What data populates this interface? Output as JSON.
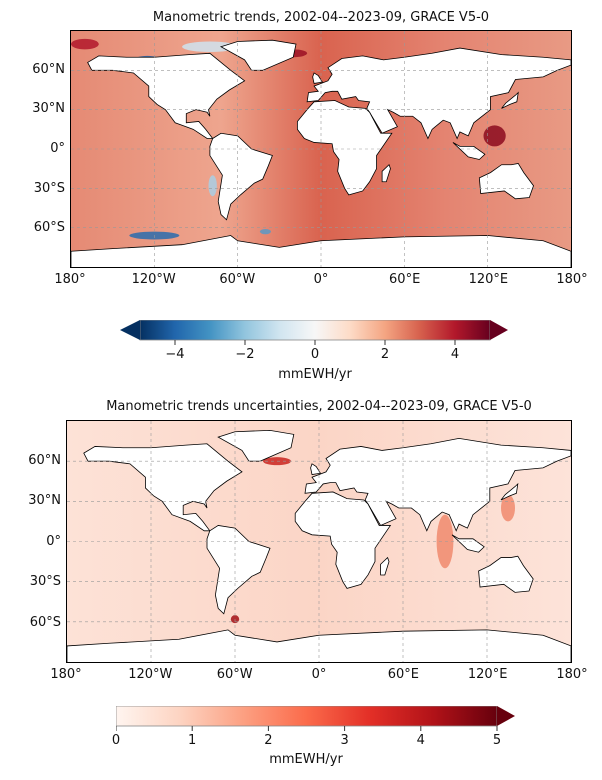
{
  "chart_data": [
    {
      "type": "heatmap",
      "title": "Manometric trends, 2002-04--2023-09, GRACE V5-0",
      "x_ticks": [
        "180°",
        "120°W",
        "60°W",
        "0°",
        "60°E",
        "120°E",
        "180°"
      ],
      "y_ticks": [
        "60°N",
        "30°N",
        "0°",
        "30°S",
        "60°S"
      ],
      "colorbar": {
        "label": "mmEWH/yr",
        "range": [
          -5,
          5
        ],
        "ticks": [
          "−4",
          "−2",
          "0",
          "2",
          "4"
        ],
        "tick_values": [
          -4,
          -2,
          0,
          2,
          4
        ],
        "colormap": "RdBu_r",
        "extend": "both"
      }
    },
    {
      "type": "heatmap",
      "title": "Manometric trends uncertainties, 2002-04--2023-09, GRACE V5-0",
      "x_ticks": [
        "180°",
        "120°W",
        "60°W",
        "0°",
        "60°E",
        "120°E",
        "180°"
      ],
      "y_ticks": [
        "60°N",
        "30°N",
        "0°",
        "30°S",
        "60°S"
      ],
      "colorbar": {
        "label": "mmEWH/yr",
        "range": [
          0,
          5
        ],
        "ticks": [
          "0",
          "1",
          "2",
          "3",
          "4",
          "5"
        ],
        "tick_values": [
          0,
          1,
          2,
          3,
          4,
          5
        ],
        "colormap": "Reds",
        "extend": "max"
      }
    }
  ]
}
